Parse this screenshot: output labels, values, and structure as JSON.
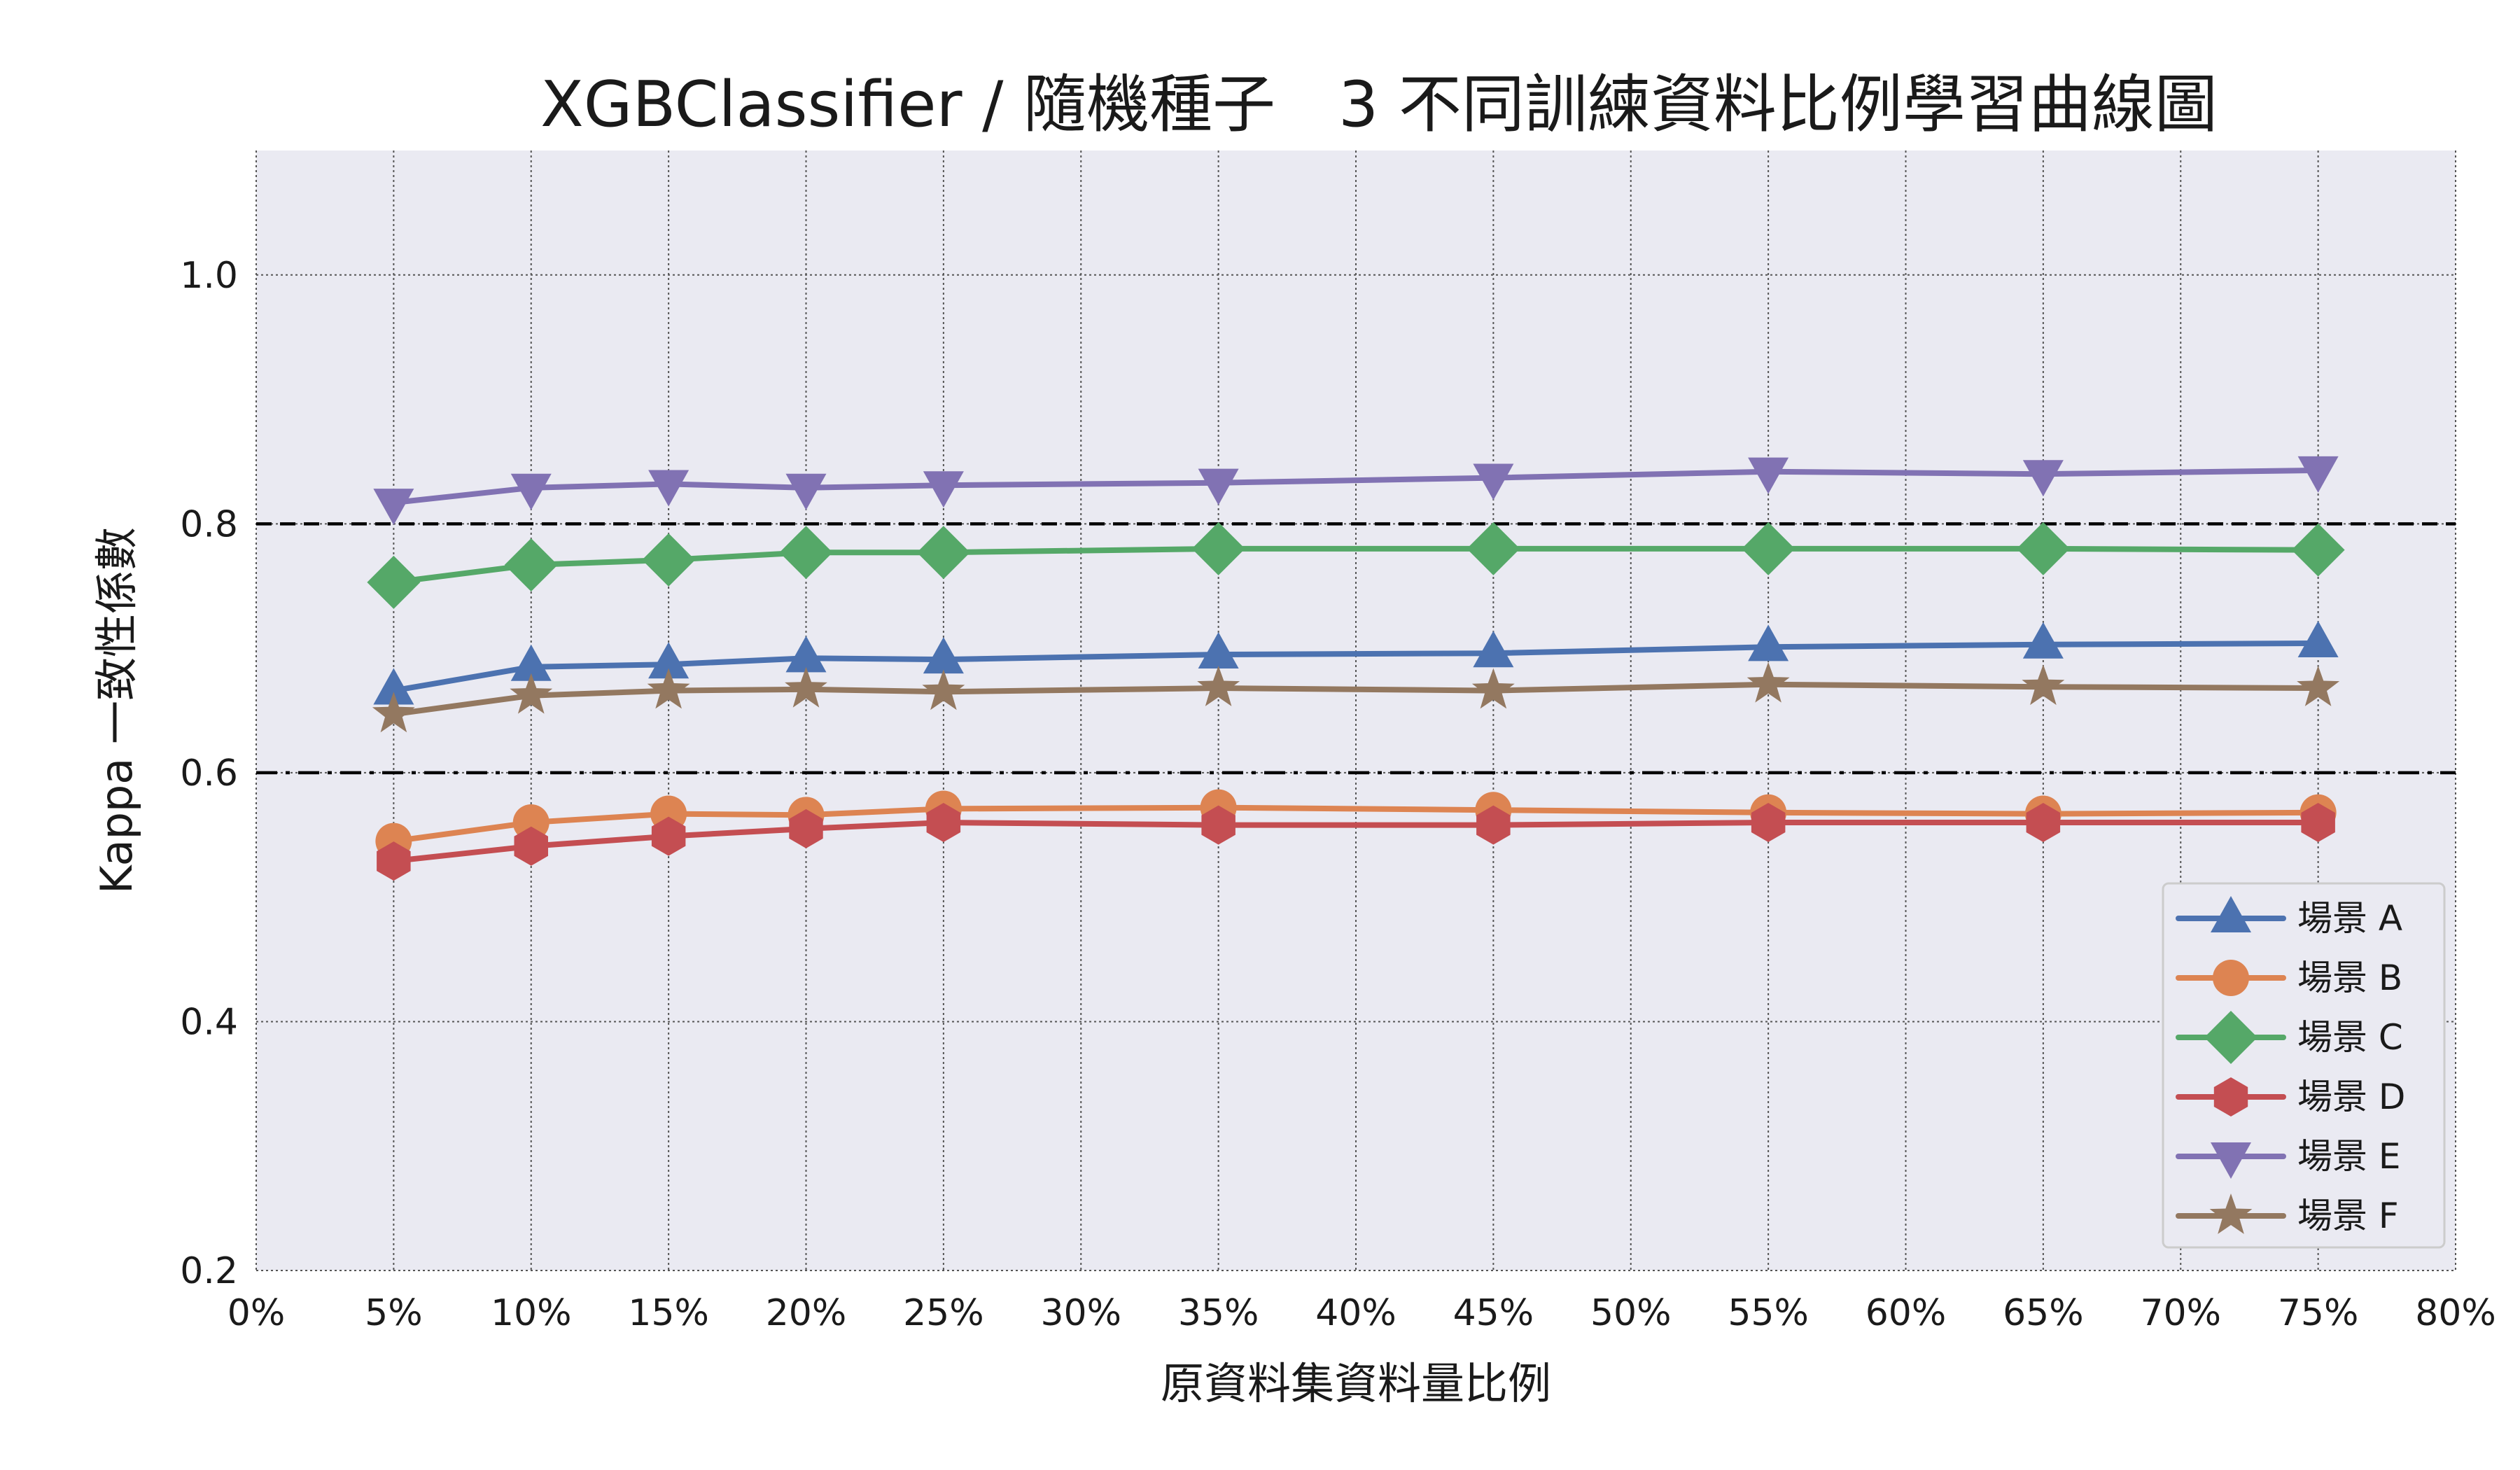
{
  "chart_data": {
    "type": "line",
    "title": "XGBClassifier / 隨機種子　3 不同訓練資料比例學習曲線圖",
    "xlabel": "原資料集資料量比例",
    "ylabel": "Kappa 一致性係數",
    "xlim": [
      0,
      80
    ],
    "ylim": [
      0.2,
      1.1
    ],
    "x_ticks": [
      "0%",
      "5%",
      "10%",
      "15%",
      "20%",
      "25%",
      "30%",
      "35%",
      "40%",
      "45%",
      "50%",
      "55%",
      "60%",
      "65%",
      "70%",
      "75%",
      "80%"
    ],
    "y_ticks": [
      "0.2",
      "0.4",
      "0.6",
      "0.8",
      "1.0"
    ],
    "grid": true,
    "legend_position": "lower-right",
    "reference_lines": [
      {
        "y": 0.8,
        "style": "dashed",
        "color": "#000000"
      },
      {
        "y": 0.6,
        "style": "dash-dot",
        "color": "#000000"
      }
    ],
    "x": [
      5,
      10,
      15,
      20,
      25,
      35,
      45,
      55,
      65,
      75
    ],
    "series": [
      {
        "name": "場景 A",
        "marker": "triangle-up",
        "color": "#4c72b0",
        "values": [
          0.666,
          0.685,
          0.687,
          0.692,
          0.691,
          0.695,
          0.696,
          0.701,
          0.703,
          0.704
        ]
      },
      {
        "name": "場景 B",
        "marker": "circle",
        "color": "#dd8452",
        "values": [
          0.545,
          0.56,
          0.567,
          0.566,
          0.571,
          0.572,
          0.57,
          0.568,
          0.567,
          0.568
        ]
      },
      {
        "name": "場景 C",
        "marker": "diamond",
        "color": "#55a868",
        "values": [
          0.753,
          0.767,
          0.771,
          0.777,
          0.777,
          0.78,
          0.78,
          0.78,
          0.78,
          0.779
        ]
      },
      {
        "name": "場景 D",
        "marker": "hexagon",
        "color": "#c44e52",
        "values": [
          0.529,
          0.541,
          0.549,
          0.555,
          0.56,
          0.558,
          0.558,
          0.56,
          0.56,
          0.56
        ]
      },
      {
        "name": "場景 E",
        "marker": "triangle-down",
        "color": "#8172b3",
        "values": [
          0.817,
          0.829,
          0.832,
          0.829,
          0.831,
          0.833,
          0.837,
          0.842,
          0.84,
          0.843
        ]
      },
      {
        "name": "場景 F",
        "marker": "star",
        "color": "#937860",
        "values": [
          0.647,
          0.662,
          0.666,
          0.667,
          0.665,
          0.668,
          0.666,
          0.671,
          0.669,
          0.668
        ]
      }
    ]
  },
  "colors": {
    "plot_background": "#eaeaf2",
    "grid": "#555555",
    "text": "#1a1a1a"
  }
}
